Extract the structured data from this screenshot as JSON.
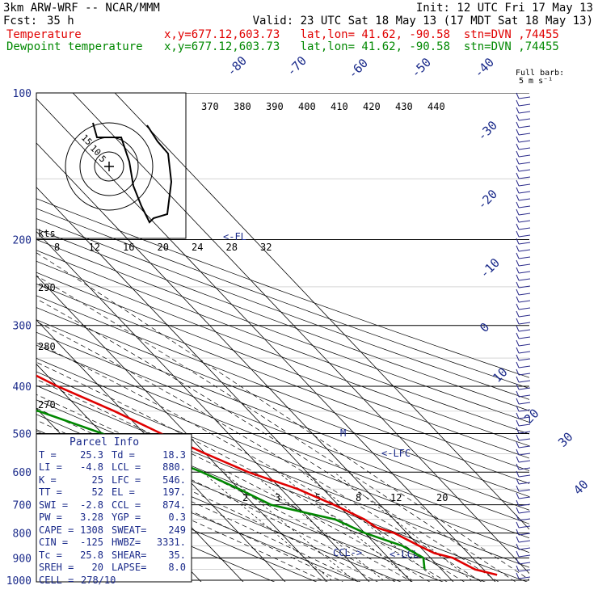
{
  "header": {
    "model": "3km ARW-WRF -- NCAR/MMM",
    "init": "Init: 12 UTC Fri 17 May 13",
    "fcst_label": "Fcst:",
    "fcst_value": "35 h",
    "valid": "Valid: 23 UTC Sat 18 May 13 (17 MDT Sat 18 May 13)",
    "line_temp_label": "Temperature",
    "line_temp_info": "x,y=677.12,603.73   lat,lon= 41.62, -90.58  stn=DVN ,74455",
    "line_dew_label": "Dewpoint temperature",
    "line_dew_info": "x,y=677.12,603.73   lat,lon= 41.62, -90.58  stn=DVN ,74455"
  },
  "colors": {
    "temperature": "#e00000",
    "dewpoint": "#008800",
    "axis": "#000000",
    "wind": "#2a2a8a"
  },
  "chart_data": {
    "type": "line",
    "title": "",
    "xlabel": "",
    "ylabel": "",
    "pressure_levels": [
      "100",
      "200",
      "300",
      "400",
      "500",
      "600",
      "700",
      "800",
      "900",
      "1000"
    ],
    "temperature_isotherm_labels": [
      "-80",
      "-70",
      "-60",
      "-50",
      "-40",
      "-30",
      "-20",
      "-10",
      "0",
      "10",
      "20",
      "30",
      "40"
    ],
    "theta_labels_top": [
      "370",
      "380",
      "390",
      "400",
      "410",
      "420",
      "430",
      "440"
    ],
    "theta_labels_left": [
      "290",
      "280",
      "270"
    ],
    "mixing_ratio_labels": [
      "2",
      "3",
      "5",
      "8",
      "12",
      "20"
    ],
    "wind_speed_label": "kts",
    "wind_speed_ticks": [
      "8",
      "12",
      "16",
      "20",
      "24",
      "28",
      "32"
    ],
    "series": [
      {
        "name": "Temperature",
        "color": "#e00000",
        "points": [
          [
            -57,
            100
          ],
          [
            -59,
            130
          ],
          [
            -62,
            170
          ],
          [
            -63,
            200
          ],
          [
            -55,
            250
          ],
          [
            -45,
            300
          ],
          [
            -37,
            350
          ],
          [
            -30,
            400
          ],
          [
            -22,
            450
          ],
          [
            -16,
            500
          ],
          [
            -10,
            550
          ],
          [
            -4,
            600
          ],
          [
            4,
            650
          ],
          [
            9,
            700
          ],
          [
            13,
            750
          ],
          [
            14,
            780
          ],
          [
            17,
            800
          ],
          [
            20,
            850
          ],
          [
            22,
            880
          ],
          [
            25.3,
            900
          ],
          [
            28,
            950
          ],
          [
            32,
            975
          ]
        ]
      },
      {
        "name": "Dewpoint temperature",
        "color": "#008800",
        "points": [
          [
            -80,
            100
          ],
          [
            -80,
            130
          ],
          [
            -78,
            170
          ],
          [
            -74,
            200
          ],
          [
            -67,
            250
          ],
          [
            -58,
            300
          ],
          [
            -54,
            330
          ],
          [
            -61,
            350
          ],
          [
            -65,
            400
          ],
          [
            -58,
            420
          ],
          [
            -40,
            450
          ],
          [
            -30,
            500
          ],
          [
            -22,
            550
          ],
          [
            -15,
            600
          ],
          [
            -10,
            650
          ],
          [
            -6,
            700
          ],
          [
            6,
            750
          ],
          [
            10,
            800
          ],
          [
            16,
            850
          ],
          [
            18.3,
            900
          ],
          [
            16,
            950
          ]
        ]
      }
    ],
    "markers": {
      "fl": "<-FL",
      "m": "M",
      "lfc": "<-LFC",
      "ccl": "CCL->",
      "lcl": "<-LCL"
    },
    "hodograph": {
      "rings": [
        "5",
        "10",
        "15"
      ]
    },
    "wind_barb_legend": {
      "line1": "Full barb:",
      "line2": "5 m s⁻¹"
    }
  },
  "parcel_info": {
    "title": "Parcel Info",
    "rows": [
      [
        "T  =",
        "25.3",
        "Td =",
        "18.3"
      ],
      [
        "LI =",
        "-4.8",
        "LCL =",
        "880."
      ],
      [
        "K  =",
        "25",
        "LFC =",
        "546."
      ],
      [
        "TT =",
        "52",
        "EL  =",
        "197."
      ],
      [
        "SWI =",
        "-2.8",
        "CCL =",
        "874."
      ],
      [
        "PW =",
        "3.28",
        "YGP =",
        "0.3"
      ],
      [
        "CAPE =",
        "1308",
        "SWEAT=",
        "249"
      ],
      [
        "CIN =",
        "-125",
        "HWBZ=",
        "3331."
      ],
      [
        "Tc =",
        "25.8",
        "SHEAR=",
        "35."
      ],
      [
        "SREH =",
        "20",
        "LAPSE=",
        "8.0"
      ]
    ],
    "cell_label": "CELL =",
    "cell_value": "278/10"
  }
}
